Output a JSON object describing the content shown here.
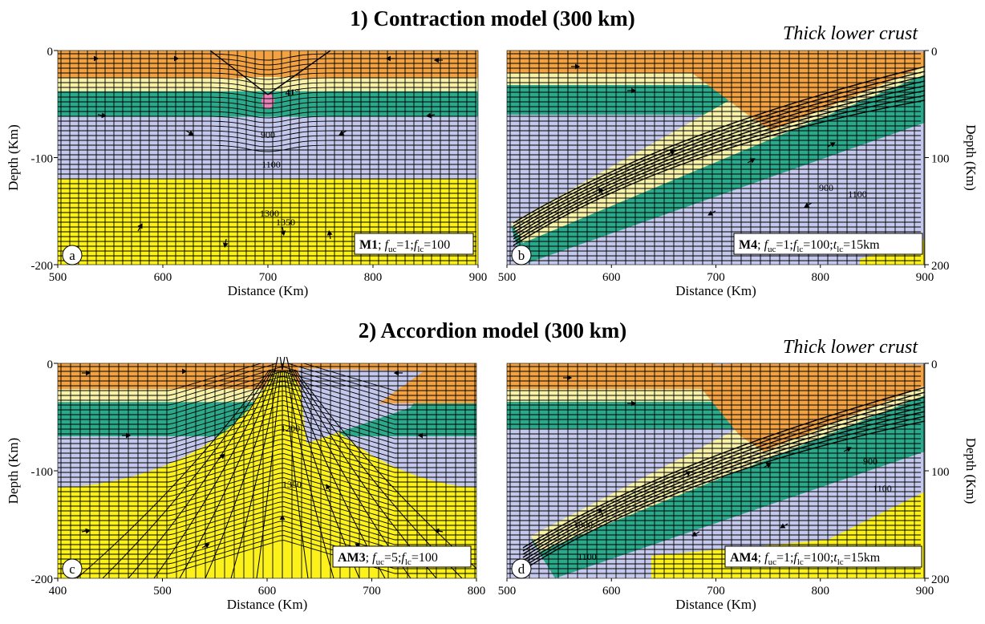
{
  "titles": {
    "contraction": "1) Contraction model (300 km)",
    "accordion": "2) Accordion model (300 km)"
  },
  "notes": {
    "thick_lower_crust": "Thick lower crust"
  },
  "colors": {
    "upper_crust": "#f2a243",
    "lower_crust": "#f7f2a8",
    "mantle_lithosphere_upper": "#2ca98b",
    "mantle_lithosphere_lower": "#c3c8ec",
    "asthenosphere": "#fcf219",
    "melt": "#e784b7"
  },
  "axes": {
    "depth_label": "Depth (Km)",
    "distance_label": "Distance (Km)",
    "depth_ticks": [
      "0",
      "-100",
      "-200"
    ],
    "right_depth_ticks": [
      "0",
      "100",
      "200"
    ]
  },
  "panels": [
    {
      "id": "a",
      "letter": "a",
      "x_ticks": [
        "500",
        "600",
        "700",
        "800",
        "900"
      ],
      "label_parts": [
        "M1",
        "; ",
        "f",
        "uc",
        "=1;",
        "f",
        "lc",
        "=100"
      ],
      "isotherms": [
        "900",
        "1100",
        "1300",
        "1350"
      ],
      "angle": "41°"
    },
    {
      "id": "b",
      "letter": "b",
      "x_ticks": [
        "500",
        "600",
        "700",
        "800",
        "900"
      ],
      "label_parts": [
        "M4",
        "; ",
        "f",
        "uc",
        "=1;",
        "f",
        "lc",
        "=100;",
        "t",
        "lc",
        "=15km"
      ],
      "isotherms": [
        "900",
        "1100"
      ]
    },
    {
      "id": "c",
      "letter": "c",
      "x_ticks": [
        "400",
        "500",
        "600",
        "700",
        "800"
      ],
      "label_parts": [
        "AM3",
        "; ",
        "f",
        "uc",
        "=5;",
        "f",
        "lc",
        "=100"
      ],
      "isotherms": [
        "1200",
        "1350"
      ]
    },
    {
      "id": "d",
      "letter": "d",
      "x_ticks": [
        "500",
        "600",
        "700",
        "800",
        "900"
      ],
      "label_parts": [
        "AM4",
        "; ",
        "f",
        "uc",
        "=1;",
        "f",
        "lc",
        "=100;",
        "t",
        "lc",
        "=15km"
      ],
      "isotherms": [
        "900",
        "1100",
        "1000",
        "1100"
      ]
    }
  ]
}
